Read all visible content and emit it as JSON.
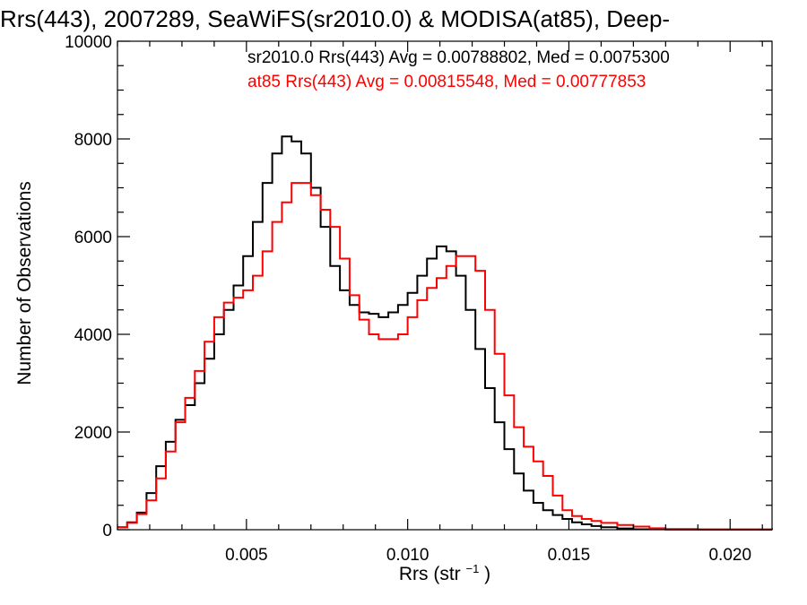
{
  "chart_data": {
    "type": "line",
    "title": "Rrs(443), 2007289, SeaWiFS(sr2010.0) & MODISA(at85), Deep-",
    "xlabel": "Rrs (str",
    "xlabel_sup": "−1",
    "xlabel_close": ")",
    "ylabel": "Number of Observations",
    "xlim": [
      0.001,
      0.0213
    ],
    "ylim": [
      0,
      10000
    ],
    "xticks": [
      {
        "v": 0.005,
        "label": "0.005"
      },
      {
        "v": 0.01,
        "label": "0.010"
      },
      {
        "v": 0.015,
        "label": "0.015"
      },
      {
        "v": 0.02,
        "label": "0.020"
      }
    ],
    "yticks": [
      {
        "v": 0,
        "label": "0"
      },
      {
        "v": 2000,
        "label": "2000"
      },
      {
        "v": 4000,
        "label": "4000"
      },
      {
        "v": 6000,
        "label": "6000"
      },
      {
        "v": 8000,
        "label": "8000"
      },
      {
        "v": 10000,
        "label": "10000"
      }
    ],
    "grid": false,
    "legend_position": "top-right",
    "series": [
      {
        "name": "sr2010.0 Rrs(443) Avg = 0.00788802, Med = 0.0075300",
        "color": "#000000",
        "points": [
          [
            0.001,
            50
          ],
          [
            0.0013,
            150
          ],
          [
            0.0016,
            350
          ],
          [
            0.0019,
            750
          ],
          [
            0.0022,
            1300
          ],
          [
            0.0025,
            1800
          ],
          [
            0.0028,
            2250
          ],
          [
            0.0031,
            2550
          ],
          [
            0.0034,
            3000
          ],
          [
            0.0037,
            3500
          ],
          [
            0.004,
            4000
          ],
          [
            0.0043,
            4500
          ],
          [
            0.0046,
            5000
          ],
          [
            0.0049,
            5600
          ],
          [
            0.0052,
            6300
          ],
          [
            0.0055,
            7100
          ],
          [
            0.0058,
            7700
          ],
          [
            0.0061,
            8050
          ],
          [
            0.0064,
            7950
          ],
          [
            0.0067,
            7700
          ],
          [
            0.007,
            7000
          ],
          [
            0.0073,
            6200
          ],
          [
            0.0076,
            5400
          ],
          [
            0.0079,
            4900
          ],
          [
            0.0082,
            4600
          ],
          [
            0.0085,
            4450
          ],
          [
            0.0088,
            4420
          ],
          [
            0.0091,
            4350
          ],
          [
            0.0094,
            4450
          ],
          [
            0.0097,
            4600
          ],
          [
            0.01,
            4850
          ],
          [
            0.0103,
            5200
          ],
          [
            0.0106,
            5550
          ],
          [
            0.0109,
            5800
          ],
          [
            0.0112,
            5700
          ],
          [
            0.0115,
            5200
          ],
          [
            0.0118,
            4500
          ],
          [
            0.0121,
            3700
          ],
          [
            0.0124,
            2900
          ],
          [
            0.0127,
            2200
          ],
          [
            0.013,
            1650
          ],
          [
            0.0133,
            1150
          ],
          [
            0.0136,
            800
          ],
          [
            0.0139,
            550
          ],
          [
            0.0142,
            400
          ],
          [
            0.0145,
            300
          ],
          [
            0.0148,
            220
          ],
          [
            0.0151,
            150
          ],
          [
            0.0154,
            110
          ],
          [
            0.0157,
            75
          ],
          [
            0.016,
            50
          ],
          [
            0.0165,
            25
          ],
          [
            0.017,
            10
          ],
          [
            0.018,
            3
          ],
          [
            0.0213,
            0
          ]
        ]
      },
      {
        "name": "at85 Rrs(443) Avg = 0.00815548, Med = 0.00777853",
        "color": "#ff0000",
        "points": [
          [
            0.001,
            50
          ],
          [
            0.0013,
            140
          ],
          [
            0.0016,
            320
          ],
          [
            0.0019,
            600
          ],
          [
            0.0022,
            1050
          ],
          [
            0.0025,
            1600
          ],
          [
            0.0028,
            2200
          ],
          [
            0.0031,
            2700
          ],
          [
            0.0034,
            3250
          ],
          [
            0.0037,
            3850
          ],
          [
            0.004,
            4350
          ],
          [
            0.0043,
            4650
          ],
          [
            0.0046,
            4750
          ],
          [
            0.0049,
            4900
          ],
          [
            0.0052,
            5200
          ],
          [
            0.0055,
            5700
          ],
          [
            0.0058,
            6300
          ],
          [
            0.0061,
            6700
          ],
          [
            0.0064,
            7100
          ],
          [
            0.0067,
            7100
          ],
          [
            0.007,
            6850
          ],
          [
            0.0073,
            6550
          ],
          [
            0.0076,
            6200
          ],
          [
            0.0079,
            5550
          ],
          [
            0.0082,
            4800
          ],
          [
            0.0085,
            4300
          ],
          [
            0.0088,
            4000
          ],
          [
            0.0091,
            3900
          ],
          [
            0.0094,
            3900
          ],
          [
            0.0097,
            4000
          ],
          [
            0.01,
            4350
          ],
          [
            0.0103,
            4700
          ],
          [
            0.0106,
            4950
          ],
          [
            0.0109,
            5150
          ],
          [
            0.0112,
            5400
          ],
          [
            0.0115,
            5600
          ],
          [
            0.0118,
            5600
          ],
          [
            0.0121,
            5300
          ],
          [
            0.0124,
            4500
          ],
          [
            0.0127,
            3600
          ],
          [
            0.013,
            2750
          ],
          [
            0.0133,
            2100
          ],
          [
            0.0136,
            1700
          ],
          [
            0.0139,
            1400
          ],
          [
            0.0142,
            1100
          ],
          [
            0.0145,
            700
          ],
          [
            0.0148,
            400
          ],
          [
            0.0151,
            280
          ],
          [
            0.0154,
            220
          ],
          [
            0.0157,
            180
          ],
          [
            0.016,
            140
          ],
          [
            0.0165,
            95
          ],
          [
            0.017,
            65
          ],
          [
            0.0175,
            30
          ],
          [
            0.018,
            12
          ],
          [
            0.019,
            3
          ],
          [
            0.0213,
            0
          ]
        ]
      }
    ]
  }
}
